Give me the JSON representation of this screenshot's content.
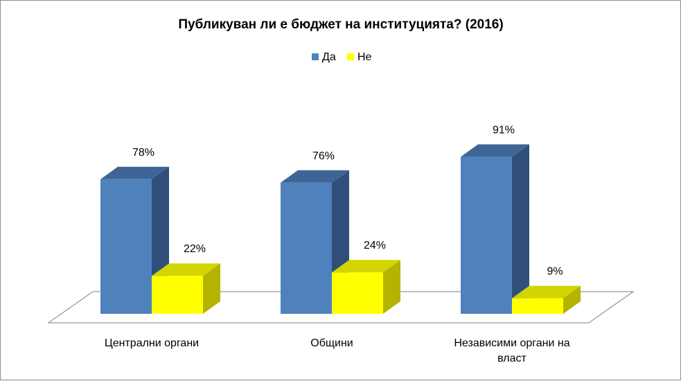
{
  "chart_data": {
    "type": "bar",
    "title": "Публикуван ли е бюджет на институцията? (2016)",
    "categories": [
      [
        "Централни органи"
      ],
      [
        "Общини"
      ],
      [
        "Независими органи на",
        "власт"
      ]
    ],
    "series": [
      {
        "name": "Да",
        "values": [
          78,
          76,
          91
        ],
        "labels": [
          "78%",
          "76%",
          "91%"
        ]
      },
      {
        "name": "Не",
        "values": [
          22,
          24,
          9
        ],
        "labels": [
          "22%",
          "24%",
          "9%"
        ]
      }
    ],
    "ylim": [
      0,
      100
    ],
    "grid": false,
    "legend_position": "top",
    "three_d": true,
    "colors": {
      "series": [
        {
          "front": "#4f81bd",
          "side": "#2f4f7a",
          "top": "#3f6597"
        },
        {
          "front": "#ffff00",
          "side": "#b3b300",
          "top": "#d4d400"
        }
      ],
      "floor_stroke": "#7f7f7f",
      "frame": "#8c8c8c"
    }
  }
}
